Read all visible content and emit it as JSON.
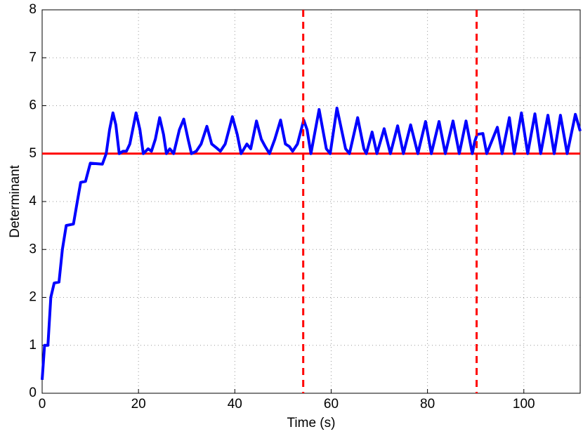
{
  "chart_data": {
    "type": "line",
    "xlabel": "Time (s)",
    "ylabel": "Determinant",
    "xlim": [
      0,
      111.7
    ],
    "ylim": [
      0,
      8
    ],
    "xticks": [
      0,
      20,
      40,
      60,
      80,
      100
    ],
    "yticks": [
      0,
      1,
      2,
      3,
      4,
      5,
      6,
      7,
      8
    ],
    "grid": true,
    "x": [
      0,
      0.5,
      1.2,
      1.8,
      2.5,
      3.5,
      4.2,
      5,
      6.5,
      7.3,
      8,
      9,
      10,
      12.5,
      13.3,
      14,
      14.7,
      15.3,
      16,
      16.8,
      17.5,
      18.2,
      19.5,
      20.3,
      21,
      22,
      22.7,
      23.5,
      24.4,
      25.2,
      25.8,
      26.5,
      27.3,
      28.5,
      29.4,
      30.3,
      31,
      32,
      33,
      34.2,
      35.2,
      36.2,
      37,
      38,
      39.5,
      40.5,
      41.3,
      42.5,
      43.3,
      44.5,
      45.5,
      46.3,
      47.2,
      48.3,
      49.5,
      50.5,
      51.3,
      52,
      53,
      54.3,
      55,
      55.8,
      57.5,
      59,
      59.8,
      61.2,
      63,
      63.8,
      65.5,
      66.8,
      67.3,
      68.5,
      69.5,
      71,
      72.3,
      73.8,
      75,
      76.5,
      78,
      79.6,
      80.8,
      82.4,
      83.7,
      85.3,
      86.6,
      88,
      89.3,
      89.8,
      90.3,
      91.5,
      92.3,
      93.5,
      94.5,
      95.5,
      97,
      98,
      99.5,
      100.8,
      102.3,
      103.5,
      105,
      106.3,
      107.6,
      109,
      110.7,
      111.7
    ],
    "series": [
      {
        "color": "#0000ff",
        "values": [
          0.28,
          1.0,
          1.0,
          2.0,
          2.3,
          2.32,
          3.0,
          3.5,
          3.53,
          4.0,
          4.4,
          4.42,
          4.8,
          4.78,
          5.0,
          5.5,
          5.85,
          5.6,
          5.0,
          5.05,
          5.05,
          5.2,
          5.85,
          5.5,
          5.0,
          5.1,
          5.05,
          5.3,
          5.75,
          5.4,
          5.0,
          5.1,
          5.0,
          5.5,
          5.72,
          5.3,
          5.0,
          5.05,
          5.2,
          5.57,
          5.2,
          5.12,
          5.05,
          5.2,
          5.77,
          5.4,
          5.0,
          5.2,
          5.1,
          5.68,
          5.3,
          5.15,
          5.0,
          5.3,
          5.7,
          5.2,
          5.15,
          5.05,
          5.2,
          5.7,
          5.5,
          5.0,
          5.92,
          5.1,
          5.0,
          5.95,
          5.1,
          5.0,
          5.75,
          5.1,
          5.0,
          5.45,
          5.0,
          5.52,
          5.0,
          5.58,
          5.0,
          5.6,
          5.0,
          5.67,
          5.0,
          5.67,
          5.0,
          5.68,
          5.0,
          5.68,
          5.0,
          5.25,
          5.4,
          5.42,
          5.0,
          5.3,
          5.55,
          5.0,
          5.75,
          5.0,
          5.85,
          5.0,
          5.83,
          5.0,
          5.8,
          5.0,
          5.8,
          5.0,
          5.82,
          5.47
        ]
      }
    ],
    "hlines": [
      {
        "value": 5,
        "color": "#ff0000",
        "style": "solid"
      }
    ],
    "vlines": [
      {
        "value": 54.2,
        "color": "#ff0000",
        "style": "dashed"
      },
      {
        "value": 90.2,
        "color": "#ff0000",
        "style": "dashed"
      }
    ]
  }
}
